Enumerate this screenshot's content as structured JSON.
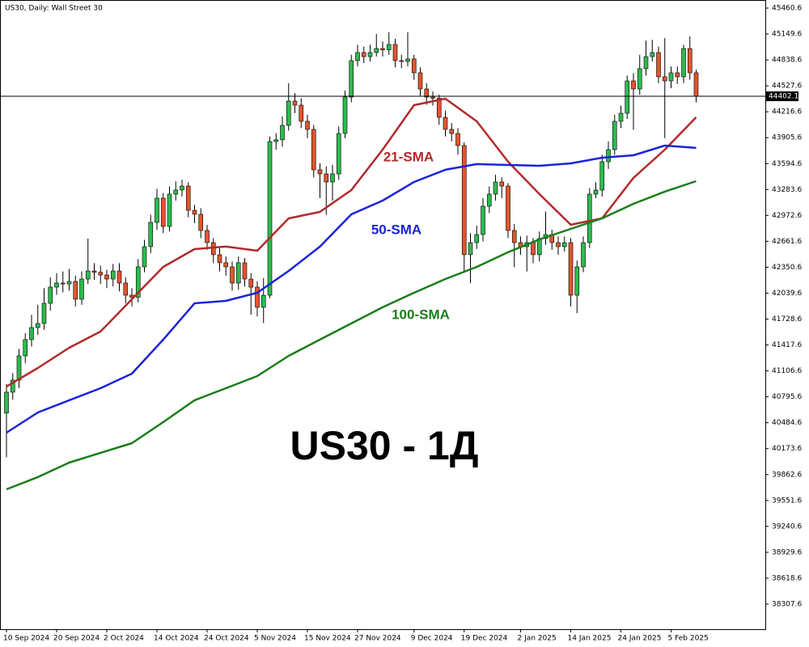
{
  "chart_data": {
    "type": "candlestick",
    "title": "US30, Daily:  Wall Street 30",
    "watermark": "US30 - 1Д",
    "categories": [
      "10 Sep 2024",
      null,
      null,
      null,
      null,
      null,
      null,
      null,
      "20 Sep 2024",
      null,
      null,
      null,
      null,
      null,
      null,
      null,
      "2 Oct 2024",
      null,
      null,
      null,
      null,
      null,
      null,
      null,
      "14 Oct 2024",
      null,
      null,
      null,
      null,
      null,
      null,
      null,
      "24 Oct 2024",
      null,
      null,
      null,
      null,
      null,
      null,
      null,
      "5 Nov 2024",
      null,
      null,
      null,
      null,
      null,
      null,
      null,
      "15 Nov 2024",
      null,
      null,
      null,
      null,
      null,
      null,
      null,
      "27 Nov 2024",
      null,
      null,
      null,
      null,
      null,
      null,
      null,
      null,
      "9 Dec 2024",
      null,
      null,
      null,
      null,
      null,
      null,
      null,
      "19 Dec 2024",
      null,
      null,
      null,
      null,
      null,
      null,
      null,
      null,
      "2 Jan 2025",
      null,
      null,
      null,
      null,
      null,
      null,
      null,
      "14 Jan 2025",
      null,
      null,
      null,
      null,
      null,
      null,
      null,
      "24 Jan 2025",
      null,
      null,
      null,
      null,
      null,
      null,
      null,
      "5 Feb 2025",
      null,
      null,
      null,
      null
    ],
    "open": [
      40600,
      40851,
      40996,
      41287,
      41482,
      41627,
      41676,
      41918,
      42112,
      42161,
      42150,
      42180,
      41967,
      42209,
      42306,
      42290,
      42258,
      42209,
      42306,
      42161,
      42015,
      41990,
      42355,
      42598,
      42889,
      43180,
      42840,
      43228,
      43277,
      43325,
      43034,
      42986,
      42792,
      42646,
      42501,
      42404,
      42355,
      42161,
      42404,
      42209,
      42112,
      41870,
      42015,
      43859,
      43880,
      44053,
      44345,
      44296,
      44102,
      44005,
      43520,
      43471,
      43374,
      43471,
      43956,
      44393,
      44830,
      44927,
      44878,
      44927,
      44975,
      44960,
      45024,
      44830,
      44820,
      44850,
      44684,
      44490,
      44393,
      44380,
      44150,
      44005,
      43956,
      43811,
      42501,
      42646,
      42743,
      43083,
      43228,
      43374,
      43325,
      42792,
      42646,
      42598,
      42646,
      42501,
      42695,
      42743,
      42646,
      42598,
      42646,
      42015,
      42355,
      42646,
      43228,
      43277,
      43617,
      43762,
      44102,
      44199,
      44587,
      44490,
      44733,
      44878,
      44927,
      44636,
      44587,
      44684,
      44636,
      44975,
      44684
    ],
    "high": [
      40950,
      41080,
      41370,
      41560,
      41780,
      41900,
      42100,
      42230,
      42280,
      42300,
      42330,
      42250,
      42300,
      42695,
      42400,
      42370,
      42320,
      42390,
      42400,
      42230,
      42100,
      42450,
      42680,
      42980,
      43290,
      43240,
      43320,
      43380,
      43400,
      43370,
      43100,
      43060,
      42860,
      42700,
      42580,
      42480,
      42420,
      42480,
      42460,
      42280,
      42180,
      42220,
      43920,
      43960,
      44160,
      44560,
      44440,
      44380,
      44180,
      44060,
      43600,
      43560,
      43580,
      44040,
      44470,
      44900,
      45020,
      45000,
      45020,
      45150,
      45060,
      45170,
      45090,
      44900,
      45170,
      44900,
      44750,
      44560,
      44460,
      44420,
      44230,
      44080,
      44020,
      43850,
      42760,
      42850,
      43180,
      43320,
      43460,
      43430,
      43360,
      42870,
      42720,
      42730,
      42700,
      42780,
      43020,
      42800,
      42720,
      42720,
      42700,
      42430,
      42720,
      43300,
      43370,
      43700,
      43860,
      44180,
      44290,
      44650,
      44680,
      44900,
      45070,
      45080,
      45000,
      45100,
      44760,
      44760,
      45020,
      45120,
      44720
    ],
    "low": [
      40070,
      40760,
      40900,
      41200,
      41400,
      41540,
      41600,
      41830,
      42020,
      42050,
      42070,
      41880,
      41900,
      42150,
      42200,
      42150,
      42100,
      42120,
      42060,
      41920,
      41880,
      41930,
      42290,
      42520,
      42800,
      42760,
      42780,
      43150,
      43200,
      42950,
      42880,
      42700,
      42560,
      42400,
      42300,
      42250,
      42070,
      42080,
      42120,
      41780,
      41760,
      41680,
      41980,
      43760,
      43800,
      43990,
      44200,
      44020,
      43900,
      43430,
      43180,
      42980,
      43150,
      43400,
      43900,
      44330,
      44760,
      44800,
      44820,
      44880,
      44880,
      44900,
      44750,
      44740,
      44760,
      44600,
      44400,
      44300,
      44290,
      44060,
      43920,
      43860,
      43700,
      42300,
      42160,
      42570,
      42660,
      43000,
      43150,
      43180,
      42700,
      42350,
      42500,
      42300,
      42400,
      42420,
      42620,
      42560,
      42500,
      42540,
      41880,
      41800,
      42290,
      42580,
      43180,
      43200,
      43530,
      43700,
      44020,
      44130,
      44000,
      44420,
      44650,
      44820,
      44560,
      43900,
      44500,
      44550,
      44560,
      44600,
      44330
    ],
    "close": [
      40851,
      40996,
      41287,
      41482,
      41627,
      41676,
      41918,
      42112,
      42161,
      42150,
      42180,
      41967,
      42209,
      42306,
      42290,
      42258,
      42209,
      42306,
      42161,
      42015,
      41990,
      42355,
      42598,
      42889,
      43180,
      42840,
      43228,
      43277,
      43325,
      43034,
      42986,
      42792,
      42646,
      42501,
      42404,
      42355,
      42161,
      42404,
      42209,
      42112,
      41870,
      42015,
      43859,
      43880,
      44053,
      44345,
      44296,
      44102,
      44005,
      43520,
      43471,
      43374,
      43471,
      43956,
      44393,
      44830,
      44927,
      44878,
      44927,
      44975,
      44960,
      45024,
      44830,
      44820,
      44850,
      44684,
      44490,
      44393,
      44380,
      44150,
      44005,
      43956,
      43811,
      42501,
      42646,
      42743,
      43083,
      43228,
      43374,
      43325,
      42792,
      42646,
      42598,
      42646,
      42501,
      42695,
      42743,
      42646,
      42598,
      42646,
      42015,
      42355,
      42646,
      43228,
      43277,
      43617,
      43762,
      44102,
      44199,
      44587,
      44490,
      44733,
      44878,
      44927,
      44636,
      44587,
      44684,
      44636,
      44975,
      44684,
      44402.1
    ],
    "up_color": "#2dbb4e",
    "down_color": "#e2552f",
    "lines": [
      {
        "name": "21-SMA",
        "color": "#b22a2a",
        "x": [
          0,
          5,
          10,
          15,
          20,
          25,
          30,
          35,
          40,
          45,
          50,
          55,
          60,
          65,
          70,
          75,
          80,
          85,
          90,
          95,
          100,
          105,
          110
        ],
        "values": [
          40919,
          41142,
          41384,
          41579,
          41967,
          42355,
          42568,
          42598,
          42549,
          42937,
          43015,
          43277,
          43762,
          44296,
          44374,
          44102,
          43617,
          43228,
          42860,
          42937,
          43423,
          43762,
          44150
        ]
      },
      {
        "name": "50-SMA",
        "color": "#1a24d8",
        "x": [
          0,
          5,
          10,
          15,
          20,
          25,
          30,
          35,
          40,
          45,
          50,
          55,
          60,
          65,
          70,
          75,
          80,
          85,
          90,
          95,
          100,
          105,
          110
        ],
        "values": [
          40365,
          40608,
          40754,
          40899,
          41074,
          41482,
          41918,
          41947,
          42044,
          42306,
          42598,
          42986,
          43151,
          43374,
          43520,
          43588,
          43578,
          43568,
          43597,
          43665,
          43694,
          43811,
          43782
        ]
      },
      {
        "name": "100-SMA",
        "color": "#1a7d1a",
        "x": [
          0,
          5,
          10,
          15,
          20,
          25,
          30,
          35,
          40,
          45,
          50,
          55,
          60,
          65,
          70,
          75,
          80,
          85,
          90,
          95,
          100,
          105,
          110
        ],
        "values": [
          39686,
          39832,
          40006,
          40123,
          40239,
          40492,
          40754,
          40899,
          41045,
          41287,
          41482,
          41676,
          41870,
          42044,
          42209,
          42355,
          42530,
          42685,
          42811,
          42937,
          43112,
          43258,
          43384
        ]
      }
    ],
    "current_price": 44402.1,
    "ylim": [
      38006.7,
      45557.6
    ],
    "yticks": [
      45460.6,
      45149.6,
      44838.6,
      44527.6,
      44216.6,
      43905.6,
      43594.6,
      43283.6,
      42972.6,
      42661.6,
      42350.6,
      42039.6,
      41728.6,
      41417.6,
      41106.6,
      40795.6,
      40484.6,
      40173.6,
      39862.6,
      39551.6,
      39240.6,
      38929.6,
      38618.6,
      38307.6
    ]
  }
}
